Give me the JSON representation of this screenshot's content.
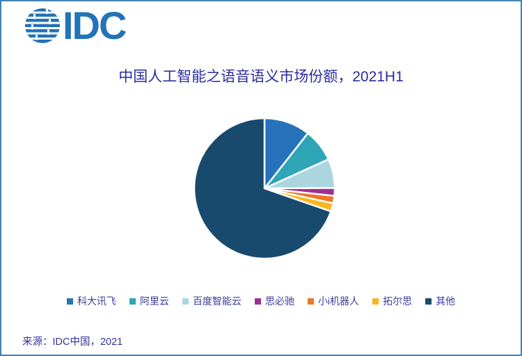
{
  "frame": {
    "background_color": "#FFFFFF",
    "border_color": "#4282B4"
  },
  "logo": {
    "text": "IDC",
    "color": "#2273B8"
  },
  "chart_data": {
    "type": "pie",
    "title": "中国人工智能之语音语义市场份额，2021H1",
    "title_color": "#2B2B9E",
    "start_angle_deg": 0,
    "direction": "clockwise",
    "data_labels": false,
    "legend_position": "bottom",
    "unit": "%",
    "categories": [
      "科大讯飞",
      "阿里云",
      "百度智能云",
      "思必驰",
      "小i机器人",
      "拓尔思",
      "其他"
    ],
    "values": [
      10.6,
      7.6,
      6.7,
      1.8,
      1.7,
      1.9,
      69.7
    ],
    "colors": [
      "#2673BC",
      "#2FA6B7",
      "#ABD6E0",
      "#9D3092",
      "#EE7723",
      "#F6B71F",
      "#184A6D"
    ],
    "slice_separator_color": "#FFFFFF"
  },
  "legend": {
    "text_color": "#3C3D9C"
  },
  "source": {
    "text": "来源：IDC中国，2021",
    "color": "#34349A"
  }
}
